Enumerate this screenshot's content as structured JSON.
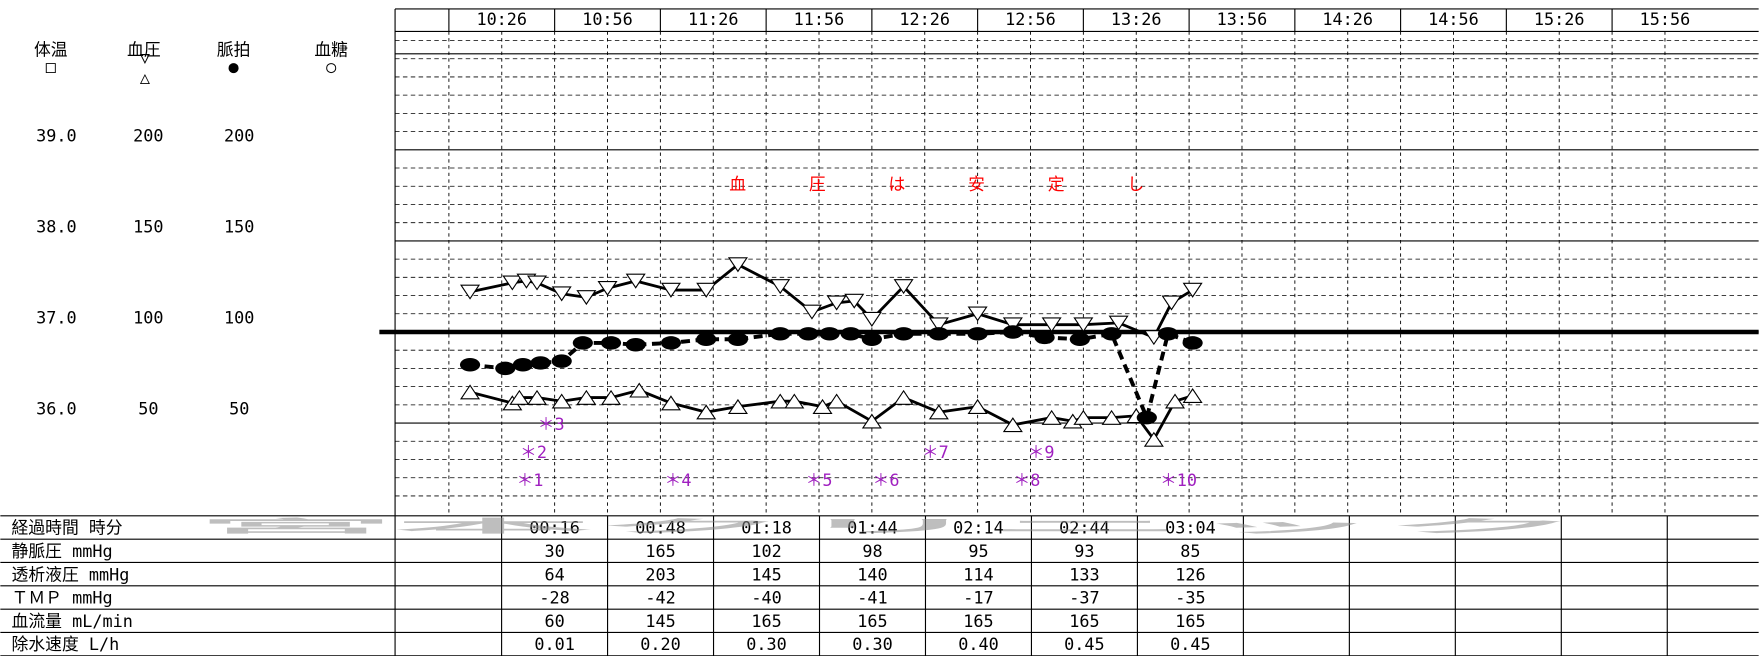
{
  "chart_data": {
    "type": "vitals",
    "legend": [
      {
        "name": "体温",
        "symbol": "□"
      },
      {
        "name": "血圧",
        "symbol": "▽△"
      },
      {
        "name": "脈拍",
        "symbol": "●"
      },
      {
        "name": "血糖",
        "symbol": "○"
      }
    ],
    "xticks": [
      "10:26",
      "10:56",
      "11:26",
      "11:56",
      "12:26",
      "12:56",
      "13:26",
      "13:56",
      "14:26",
      "14:56",
      "15:26",
      "15:56"
    ],
    "ylim": [
      0,
      265
    ],
    "yticks": [
      50,
      100,
      150,
      200
    ],
    "pulse_ticks": [
      50,
      100,
      150,
      200
    ],
    "temperature_ticks": [
      {
        "value": 50,
        "label": "36.0"
      },
      {
        "value": 100,
        "label": "37.0"
      },
      {
        "value": 150,
        "label": "38.0"
      },
      {
        "value": 200,
        "label": "39.0"
      }
    ],
    "minor_grid_step": 10,
    "reference_line": 100,
    "series": [
      {
        "legend": 1,
        "marker": "triangle-down",
        "line": "solid",
        "color": "#000000",
        "x": [
          "10:32",
          "10:44",
          "10:48",
          "10:51",
          "10:58",
          "11:05",
          "11:11",
          "11:19",
          "11:29",
          "11:39",
          "11:48",
          "12:00",
          "12:09",
          "12:16",
          "12:21",
          "12:26",
          "12:35",
          "12:45",
          "12:56",
          "13:06",
          "13:17",
          "13:26",
          "13:36",
          "13:46",
          "13:51",
          "13:57"
        ],
        "values": [
          122,
          127,
          128,
          127,
          121,
          119,
          124,
          128,
          123,
          123,
          137,
          125,
          111,
          116,
          117,
          107,
          125,
          104,
          110,
          104,
          104,
          104,
          105,
          97,
          116,
          123
        ]
      },
      {
        "legend": 1,
        "marker": "triangle-up",
        "line": "solid",
        "color": "#000000",
        "x": [
          "10:32",
          "10:44",
          "10:46",
          "10:51",
          "10:58",
          "11:05",
          "11:12",
          "11:20",
          "11:29",
          "11:39",
          "11:48",
          "12:00",
          "12:04",
          "12:12",
          "12:16",
          "12:26",
          "12:35",
          "12:45",
          "12:56",
          "13:06",
          "13:17",
          "13:23",
          "13:26",
          "13:34",
          "13:41",
          "13:46",
          "13:52",
          "13:57"
        ],
        "values": [
          67,
          61,
          64,
          64,
          62,
          64,
          64,
          68,
          61,
          56,
          59,
          62,
          62,
          59,
          62,
          51,
          64,
          56,
          59,
          49,
          53,
          51,
          53,
          53,
          54,
          41,
          62,
          65
        ]
      },
      {
        "legend": 2,
        "marker": "circle",
        "line": "dashed",
        "color": "#000000",
        "x": [
          "10:32",
          "10:42",
          "10:47",
          "10:52",
          "10:58",
          "11:04",
          "11:12",
          "11:19",
          "11:29",
          "11:39",
          "11:48",
          "12:00",
          "12:08",
          "12:14",
          "12:20",
          "12:26",
          "12:35",
          "12:45",
          "12:56",
          "13:06",
          "13:15",
          "13:25",
          "13:34",
          "13:44",
          "13:50",
          "13:57"
        ],
        "values": [
          82,
          80,
          82,
          83,
          84,
          94,
          94,
          93,
          94,
          96,
          96,
          99,
          99,
          99,
          99,
          96,
          99,
          99,
          99,
          100,
          97,
          96,
          99,
          53,
          99,
          94
        ]
      }
    ],
    "annotations_color": "#a020c0",
    "annotations": [
      {
        "text": "＊1",
        "x": "10:49"
      },
      {
        "text": "＊2",
        "x": "10:50"
      },
      {
        "text": "＊3",
        "x": "10:55"
      },
      {
        "text": "＊4",
        "x": "11:31"
      },
      {
        "text": "＊5",
        "x": "12:11"
      },
      {
        "text": "＊6",
        "x": "12:30"
      },
      {
        "text": "＊7",
        "x": "12:44"
      },
      {
        "text": "＊8",
        "x": "13:10"
      },
      {
        "text": "＊9",
        "x": "13:14"
      },
      {
        "text": "＊10",
        "x": "13:53"
      }
    ],
    "note": "血圧は安定し",
    "note_color": "#ff0000"
  },
  "table": {
    "rows": [
      {
        "label": "経過時間 時分",
        "cells": [
          "00:16",
          "00:48",
          "01:18",
          "01:44",
          "02:14",
          "02:44",
          "03:04"
        ]
      },
      {
        "label": "静脈圧 mmHg",
        "cells": [
          "30",
          "165",
          "102",
          "98",
          "95",
          "93",
          "85"
        ]
      },
      {
        "label": "透析液圧 mmHg",
        "cells": [
          "64",
          "203",
          "145",
          "140",
          "114",
          "133",
          "126"
        ]
      },
      {
        "label": "ＴＭＰ mmHg",
        "cells": [
          "-28",
          "-42",
          "-40",
          "-41",
          "-17",
          "-37",
          "-35"
        ]
      },
      {
        "label": "血流量 mL/min",
        "cells": [
          "60",
          "145",
          "165",
          "165",
          "165",
          "165",
          "165"
        ]
      },
      {
        "label": "除水速度 L/h",
        "cells": [
          "0.01",
          "0.20",
          "0.30",
          "0.30",
          "0.40",
          "0.45",
          "0.45"
        ]
      }
    ]
  },
  "watermark": "宮本クリニック"
}
